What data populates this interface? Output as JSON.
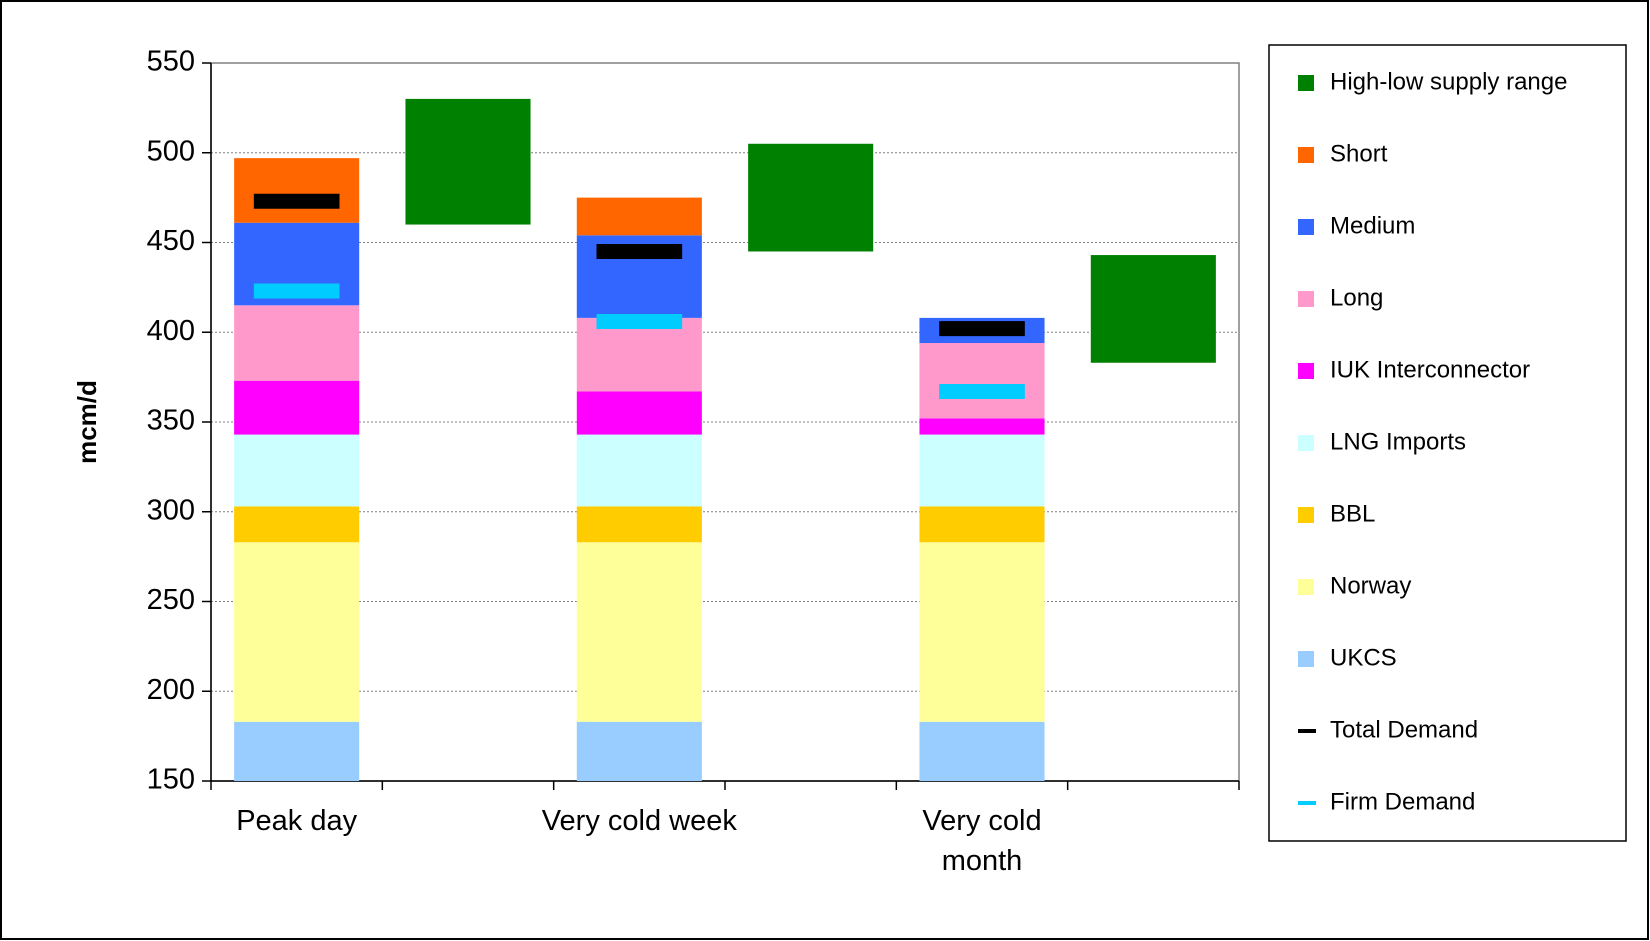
{
  "chart_data": {
    "type": "stacked-bar",
    "y_label": "mcm/d",
    "categories": [
      "Peak day",
      null,
      "Very cold week",
      null,
      "Very cold month",
      null
    ],
    "ylim": [
      150,
      550
    ],
    "yticks": [
      150,
      200,
      250,
      300,
      350,
      400,
      450,
      500,
      550
    ],
    "grid": true,
    "legend": "right",
    "series": [
      {
        "name": "High-low supply range",
        "style": "floating",
        "color": "#008000",
        "low": [
          null,
          460,
          null,
          445,
          null,
          383
        ],
        "high": [
          null,
          530,
          null,
          505,
          null,
          443
        ]
      },
      {
        "name": "Short",
        "style": "bar",
        "color": "#ff6600",
        "values": [
          36,
          null,
          21,
          null,
          0,
          null
        ]
      },
      {
        "name": "Medium",
        "style": "bar",
        "color": "#3366ff",
        "values": [
          46,
          null,
          46,
          null,
          14,
          null
        ]
      },
      {
        "name": "Long",
        "style": "bar",
        "color": "#ff99cc",
        "values": [
          42,
          null,
          41,
          null,
          42,
          null
        ]
      },
      {
        "name": "IUK Interconnector",
        "style": "bar",
        "color": "#ff00ff",
        "values": [
          30,
          null,
          24,
          null,
          9,
          null
        ]
      },
      {
        "name": "LNG Imports",
        "style": "bar",
        "color": "#ccffff",
        "values": [
          40,
          null,
          40,
          null,
          40,
          null
        ]
      },
      {
        "name": "BBL",
        "style": "bar",
        "color": "#ffcc00",
        "values": [
          20,
          null,
          20,
          null,
          20,
          null
        ]
      },
      {
        "name": "Norway",
        "style": "bar",
        "color": "#ffff99",
        "values": [
          100,
          null,
          100,
          null,
          100,
          null
        ]
      },
      {
        "name": "UKCS",
        "style": "bar",
        "color": "#99ccff",
        "values": [
          183,
          null,
          183,
          null,
          183,
          null
        ]
      },
      {
        "name": "Total Demand",
        "style": "marker",
        "color": "#000000",
        "values": [
          473,
          null,
          445,
          null,
          402,
          null
        ]
      },
      {
        "name": "Firm Demand",
        "style": "marker",
        "color": "#00ccff",
        "values": [
          423,
          null,
          406,
          null,
          367,
          null
        ]
      }
    ]
  }
}
